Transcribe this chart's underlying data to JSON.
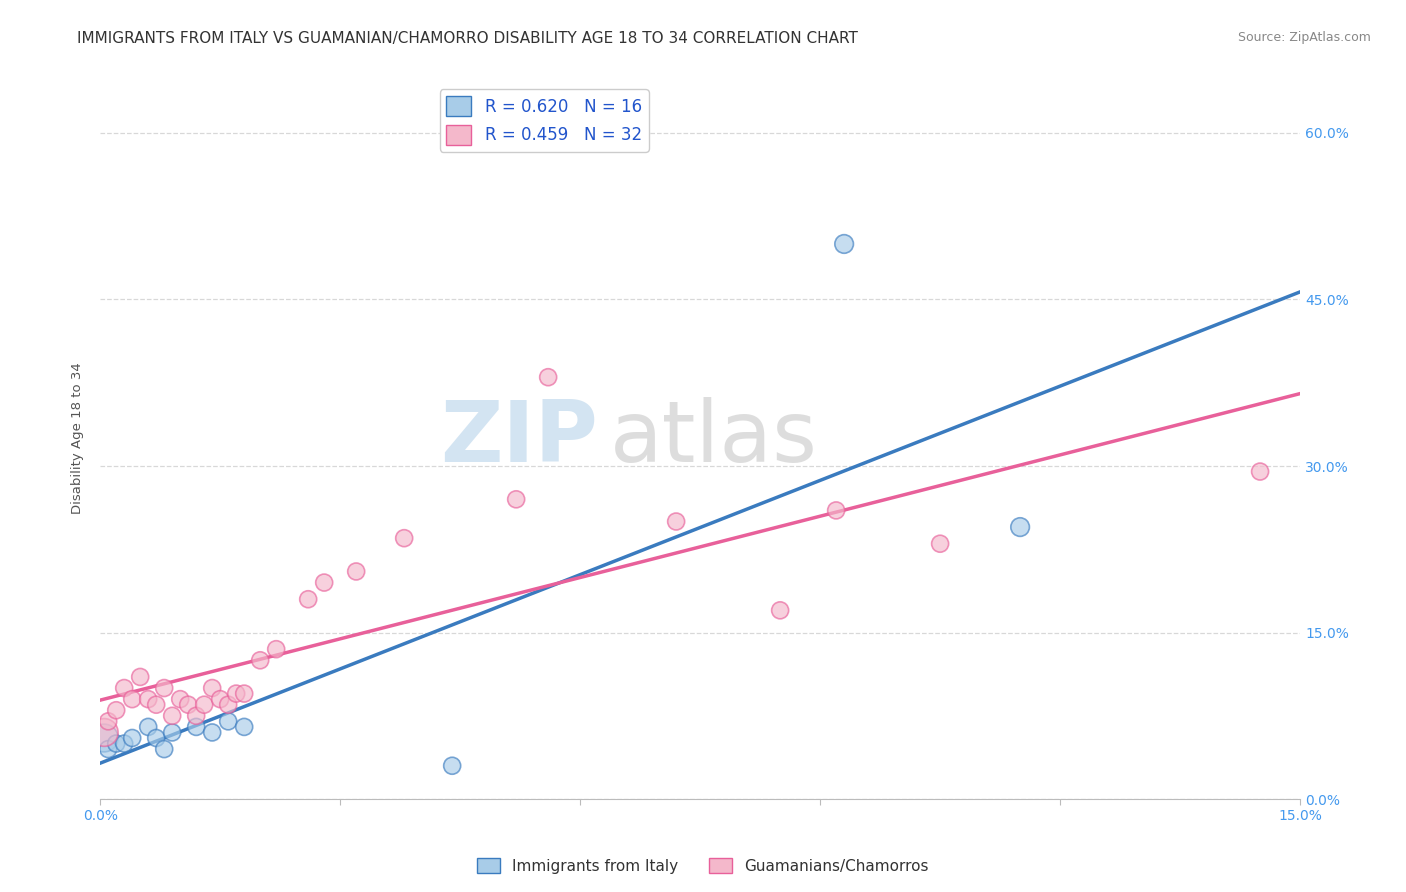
{
  "title": "IMMIGRANTS FROM ITALY VS GUAMANIAN/CHAMORRO DISABILITY AGE 18 TO 34 CORRELATION CHART",
  "source": "Source: ZipAtlas.com",
  "ylabel": "Disability Age 18 to 34",
  "x_min": 0.0,
  "x_max": 0.15,
  "y_min": 0.0,
  "y_max": 0.65,
  "x_ticks": [
    0.0,
    0.03,
    0.06,
    0.09,
    0.12,
    0.15
  ],
  "x_tick_labels_show": [
    "0.0%",
    "",
    "",
    "",
    "",
    "15.0%"
  ],
  "y_ticks": [
    0.0,
    0.15,
    0.3,
    0.45,
    0.6
  ],
  "y_tick_labels": [
    "0.0%",
    "15.0%",
    "30.0%",
    "45.0%",
    "60.0%"
  ],
  "blue_color": "#a8cce8",
  "pink_color": "#f4b8cb",
  "blue_line_color": "#3a7bbf",
  "pink_line_color": "#e8609a",
  "legend_blue_label": "R = 0.620   N = 16",
  "legend_pink_label": "R = 0.459   N = 32",
  "legend_bottom_blue": "Immigrants from Italy",
  "legend_bottom_pink": "Guamanians/Chamorros",
  "watermark_zip": "ZIP",
  "watermark_atlas": "atlas",
  "blue_x": [
    0.0005,
    0.001,
    0.002,
    0.003,
    0.004,
    0.006,
    0.007,
    0.008,
    0.009,
    0.012,
    0.014,
    0.016,
    0.018,
    0.044,
    0.093,
    0.115
  ],
  "blue_y": [
    0.055,
    0.045,
    0.05,
    0.05,
    0.055,
    0.065,
    0.055,
    0.045,
    0.06,
    0.065,
    0.06,
    0.07,
    0.065,
    0.03,
    0.5,
    0.245
  ],
  "blue_sizes": [
    400,
    150,
    150,
    150,
    150,
    150,
    150,
    150,
    150,
    150,
    150,
    150,
    150,
    150,
    180,
    180
  ],
  "pink_x": [
    0.0005,
    0.001,
    0.002,
    0.003,
    0.004,
    0.005,
    0.006,
    0.007,
    0.008,
    0.009,
    0.01,
    0.011,
    0.012,
    0.013,
    0.014,
    0.015,
    0.016,
    0.017,
    0.018,
    0.02,
    0.022,
    0.026,
    0.028,
    0.032,
    0.038,
    0.052,
    0.056,
    0.072,
    0.085,
    0.092,
    0.105,
    0.145
  ],
  "pink_y": [
    0.06,
    0.07,
    0.08,
    0.1,
    0.09,
    0.11,
    0.09,
    0.085,
    0.1,
    0.075,
    0.09,
    0.085,
    0.075,
    0.085,
    0.1,
    0.09,
    0.085,
    0.095,
    0.095,
    0.125,
    0.135,
    0.18,
    0.195,
    0.205,
    0.235,
    0.27,
    0.38,
    0.25,
    0.17,
    0.26,
    0.23,
    0.295
  ],
  "pink_sizes": [
    400,
    150,
    150,
    150,
    150,
    150,
    150,
    150,
    150,
    150,
    150,
    150,
    150,
    150,
    150,
    150,
    150,
    150,
    150,
    150,
    150,
    150,
    150,
    150,
    150,
    150,
    150,
    150,
    150,
    150,
    150,
    150
  ],
  "grid_color": "#d8d8d8",
  "background_color": "#ffffff",
  "title_fontsize": 11,
  "axis_label_fontsize": 9.5,
  "tick_fontsize": 10,
  "source_fontsize": 9
}
